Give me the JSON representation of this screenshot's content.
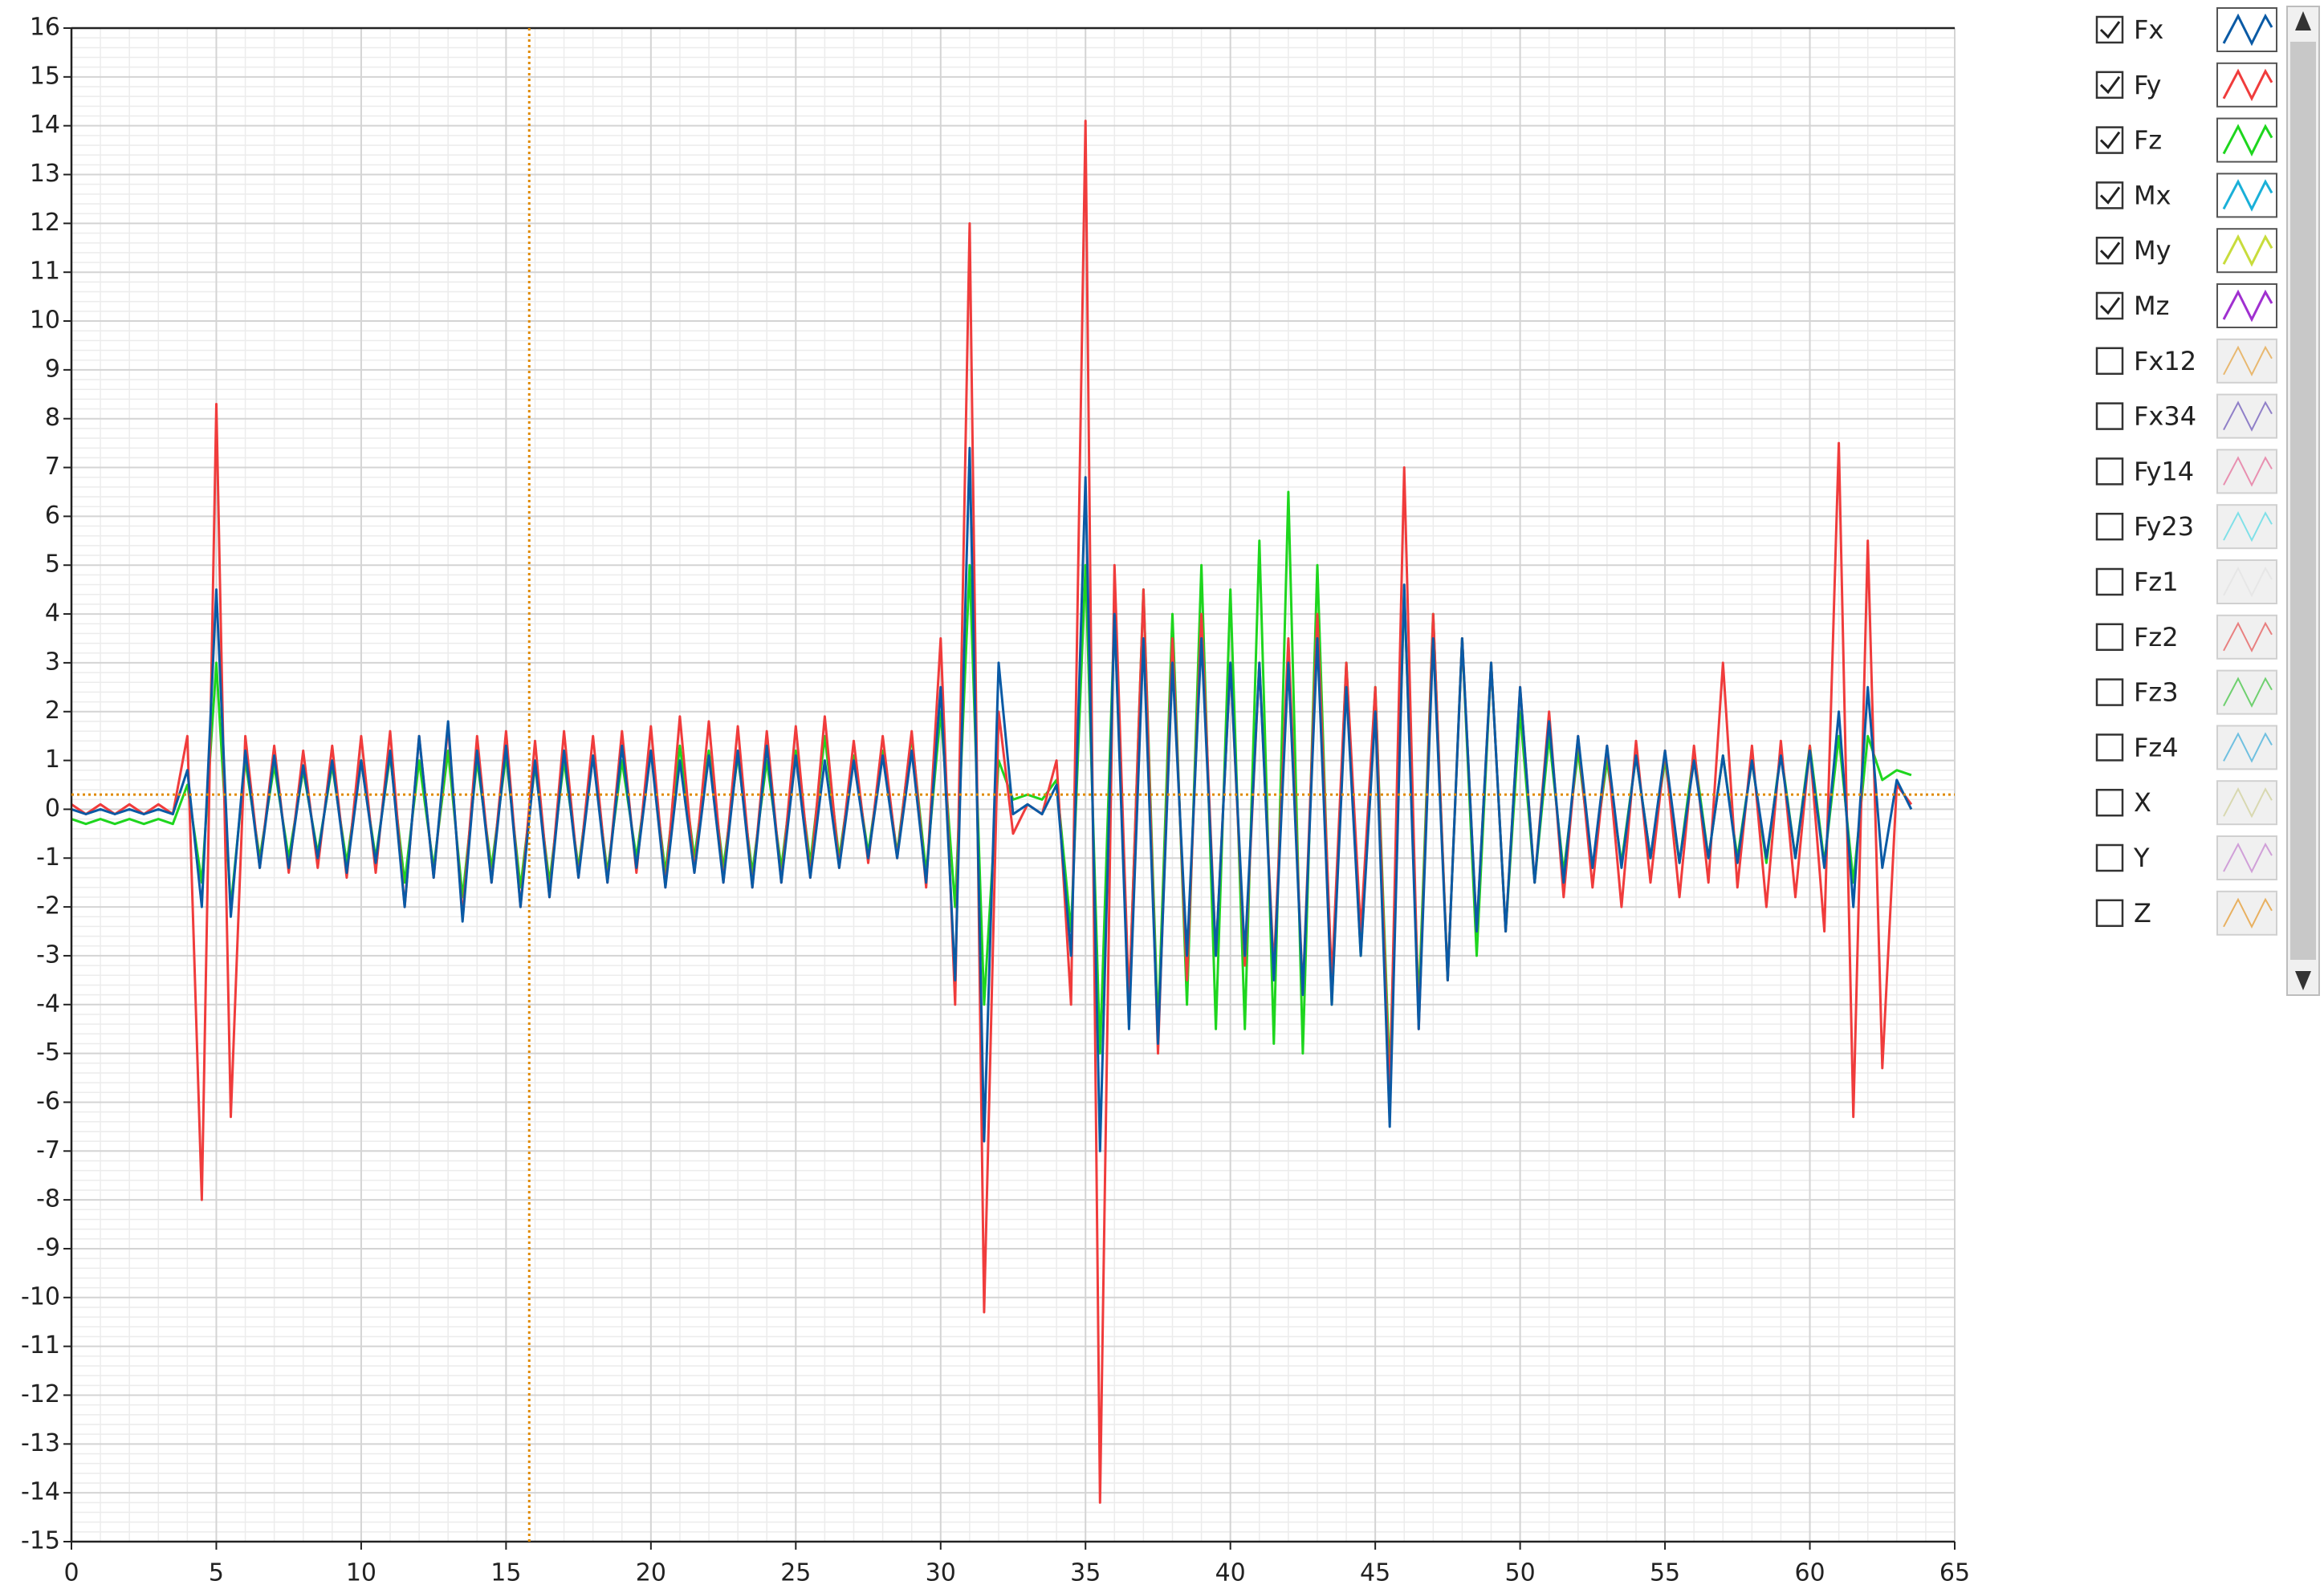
{
  "chart_data": {
    "type": "line",
    "x": [
      0,
      0.5,
      1,
      1.5,
      2,
      2.5,
      3,
      3.5,
      4,
      4.5,
      5,
      5.5,
      6,
      6.5,
      7,
      7.5,
      8,
      8.5,
      9,
      9.5,
      10,
      10.5,
      11,
      11.5,
      12,
      12.5,
      13,
      13.5,
      14,
      14.5,
      15,
      15.5,
      16,
      16.5,
      17,
      17.5,
      18,
      18.5,
      19,
      19.5,
      20,
      20.5,
      21,
      21.5,
      22,
      22.5,
      23,
      23.5,
      24,
      24.5,
      25,
      25.5,
      26,
      26.5,
      27,
      27.5,
      28,
      28.5,
      29,
      29.5,
      30,
      30.5,
      31,
      31.5,
      32,
      32.5,
      33,
      33.5,
      34,
      34.5,
      35,
      35.5,
      36,
      36.5,
      37,
      37.5,
      38,
      38.5,
      39,
      39.5,
      40,
      40.5,
      41,
      41.5,
      42,
      42.5,
      43,
      43.5,
      44,
      44.5,
      45,
      45.5,
      46,
      46.5,
      47,
      47.5,
      48,
      48.5,
      49,
      49.5,
      50,
      50.5,
      51,
      51.5,
      52,
      52.5,
      53,
      53.5,
      54,
      54.5,
      55,
      55.5,
      56,
      56.5,
      57,
      57.5,
      58,
      58.5,
      59,
      59.5,
      60,
      60.5,
      61,
      61.5,
      62,
      62.5,
      63,
      63.5
    ],
    "series": [
      {
        "name": "Fx",
        "color": "#0a5aa5",
        "checked": true,
        "values": [
          0,
          -0.1,
          0,
          -0.1,
          0,
          -0.1,
          0,
          -0.1,
          0.8,
          -2,
          4.5,
          -2.2,
          1.2,
          -1.2,
          1.1,
          -1.2,
          0.9,
          -1.0,
          1.0,
          -1.3,
          1.0,
          -1.1,
          1.2,
          -2.0,
          1.5,
          -1.4,
          1.8,
          -2.3,
          1.2,
          -1.5,
          1.3,
          -2.0,
          1.0,
          -1.8,
          1.2,
          -1.4,
          1.1,
          -1.5,
          1.3,
          -1.2,
          1.2,
          -1.6,
          1.0,
          -1.3,
          1.1,
          -1.5,
          1.2,
          -1.6,
          1.3,
          -1.5,
          1.1,
          -1.4,
          1.0,
          -1.2,
          1.0,
          -1.0,
          1.1,
          -1.0,
          1.2,
          -1.5,
          2.5,
          -3.5,
          7.4,
          -6.8,
          3,
          -0.1,
          0.1,
          -0.1,
          0.5,
          -3,
          6.8,
          -7,
          4,
          -4.5,
          3.5,
          -4.8,
          3,
          -3,
          3.5,
          -3,
          3,
          -3,
          3,
          -3.5,
          3,
          -3.8,
          3.5,
          -4,
          2.5,
          -3,
          2,
          -6.5,
          4.6,
          -4.5,
          3.5,
          -3.5,
          3.5,
          -2.5,
          3,
          -2.5,
          2.5,
          -1.5,
          1.8,
          -1.5,
          1.5,
          -1.2,
          1.3,
          -1.2,
          1.1,
          -1.0,
          1.2,
          -1.1,
          1.0,
          -1.0,
          1.1,
          -1.1,
          1.0,
          -1.0,
          1.1,
          -1.0,
          1.2,
          -1.2,
          2,
          -2,
          2.5,
          -1.2,
          0.6,
          0
        ]
      },
      {
        "name": "Fy",
        "color": "#f03c3c",
        "checked": true,
        "values": [
          0.1,
          -0.1,
          0.1,
          -0.1,
          0.1,
          -0.1,
          0.1,
          -0.1,
          1.5,
          -8,
          8.3,
          -6.3,
          1.5,
          -1.2,
          1.3,
          -1.3,
          1.2,
          -1.2,
          1.3,
          -1.4,
          1.5,
          -1.3,
          1.6,
          -2.0,
          1.5,
          -1.4,
          1.7,
          -2.2,
          1.5,
          -1.5,
          1.6,
          -2.0,
          1.4,
          -1.8,
          1.6,
          -1.4,
          1.5,
          -1.5,
          1.6,
          -1.3,
          1.7,
          -1.6,
          1.9,
          -1.3,
          1.8,
          -1.5,
          1.7,
          -1.6,
          1.6,
          -1.5,
          1.7,
          -1.4,
          1.9,
          -1.2,
          1.4,
          -1.1,
          1.5,
          -1.0,
          1.6,
          -1.6,
          3.5,
          -4,
          12,
          -10.3,
          2,
          -0.5,
          0.1,
          -0.1,
          1,
          -4,
          14.1,
          -14.2,
          5,
          -4,
          4.5,
          -5,
          3.5,
          -3.5,
          4,
          -3,
          3,
          -3.2,
          3,
          -3.3,
          3.5,
          -3.8,
          4,
          -3.5,
          3,
          -2.5,
          2.5,
          -6,
          7,
          -4.5,
          4,
          -3.5,
          3.5,
          -2.5,
          3,
          -2.5,
          2.5,
          -1.5,
          2,
          -1.8,
          1.5,
          -1.6,
          1.3,
          -2,
          1.4,
          -1.5,
          1.2,
          -1.8,
          1.3,
          -1.5,
          3,
          -1.6,
          1.3,
          -2,
          1.4,
          -1.8,
          1.3,
          -2.5,
          7.5,
          -6.3,
          5.5,
          -5.3,
          0.5,
          0.1
        ]
      },
      {
        "name": "Fz",
        "color": "#1ed61e",
        "checked": true,
        "values": [
          -0.2,
          -0.3,
          -0.2,
          -0.3,
          -0.2,
          -0.3,
          -0.2,
          -0.3,
          0.5,
          -1.5,
          3,
          -2,
          1,
          -1,
          0.9,
          -1.0,
          0.8,
          -0.9,
          0.9,
          -1.1,
          1.0,
          -1.0,
          1.1,
          -1.5,
          1.0,
          -1.2,
          1.2,
          -1.8,
          1.0,
          -1.2,
          1.1,
          -1.6,
          0.9,
          -1.5,
          1.0,
          -1.2,
          1.1,
          -1.3,
          1.0,
          -1.0,
          1.2,
          -1.3,
          1.3,
          -1.0,
          1.2,
          -1.2,
          1.1,
          -1.3,
          1.0,
          -1.2,
          1.2,
          -1.1,
          1.5,
          -1.0,
          1.1,
          -0.9,
          1.2,
          -0.9,
          1.5,
          -1.3,
          2,
          -2,
          5,
          -4,
          1,
          0.2,
          0.3,
          0.2,
          0.6,
          -2.5,
          5,
          -5,
          4,
          -4,
          4.5,
          -4.5,
          4,
          -4,
          5,
          -4.5,
          4.5,
          -4.5,
          5.5,
          -4.8,
          6.5,
          -5,
          5,
          -4,
          3,
          -3,
          2.5,
          -5.5,
          4.5,
          -4,
          4,
          -3.5,
          3.5,
          -3,
          3,
          -2.5,
          2,
          -1.5,
          1.5,
          -1.3,
          1.2,
          -1.2,
          1.0,
          -1.1,
          1.1,
          -1.0,
          1.0,
          -1.1,
          1.2,
          -1.0,
          1.1,
          -1.0,
          1.0,
          -1.1,
          1.2,
          -1.0,
          1.3,
          -1.1,
          1.5,
          -1.5,
          1.5,
          0.6,
          0.8,
          0.7
        ]
      },
      {
        "name": "Mx",
        "color": "#1ab0d8",
        "checked": true
      },
      {
        "name": "My",
        "color": "#c8dc3c",
        "checked": true
      },
      {
        "name": "Mz",
        "color": "#a030d0",
        "checked": true
      },
      {
        "name": "Fx12",
        "color": "#e8b870",
        "checked": false
      },
      {
        "name": "Fx34",
        "color": "#9080c8",
        "checked": false
      },
      {
        "name": "Fy14",
        "color": "#e890b0",
        "checked": false
      },
      {
        "name": "Fy23",
        "color": "#80e0e8",
        "checked": false
      },
      {
        "name": "Fz1",
        "color": "#e6e6e6",
        "checked": false
      },
      {
        "name": "Fz2",
        "color": "#e88080",
        "checked": false
      },
      {
        "name": "Fz3",
        "color": "#70d070",
        "checked": false
      },
      {
        "name": "Fz4",
        "color": "#70c0e0",
        "checked": false
      },
      {
        "name": "X",
        "color": "#d8d8b0",
        "checked": false
      },
      {
        "name": "Y",
        "color": "#d0a0d8",
        "checked": false
      },
      {
        "name": "Z",
        "color": "#e8b060",
        "checked": false
      }
    ],
    "xlim": [
      0,
      65
    ],
    "xticks": [
      0,
      5,
      10,
      15,
      20,
      25,
      30,
      35,
      40,
      45,
      50,
      55,
      60,
      65
    ],
    "ylim": [
      -15,
      16
    ],
    "yticks": [
      -15,
      -14,
      -13,
      -12,
      -11,
      -10,
      -9,
      -8,
      -7,
      -6,
      -5,
      -4,
      -3,
      -2,
      -1,
      0,
      1,
      2,
      3,
      4,
      5,
      6,
      7,
      8,
      9,
      10,
      11,
      12,
      13,
      14,
      15,
      16
    ],
    "grid": true,
    "minor_grid": true,
    "cursor": {
      "x": 15.8,
      "y": 0.3,
      "color": "#e08a00"
    }
  }
}
